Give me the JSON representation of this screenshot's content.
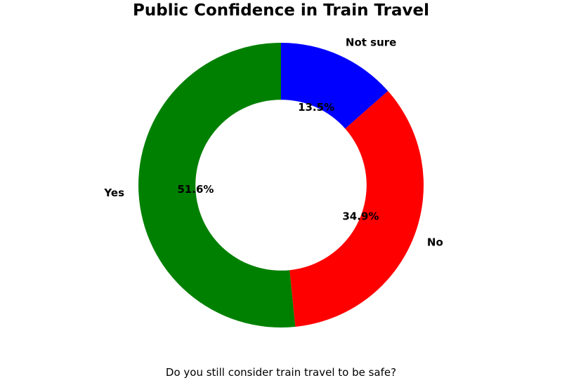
{
  "chart_data": {
    "type": "pie",
    "subtype": "donut",
    "title": "Public Confidence in Train Travel",
    "caption": "Do you still consider train travel to be safe?",
    "categories": [
      "Not sure",
      "No",
      "Yes"
    ],
    "values": [
      13.5,
      34.9,
      51.6
    ],
    "slices": [
      {
        "label": "Not sure",
        "value": 13.5,
        "pct_label": "13.5%",
        "color": "#0000ff"
      },
      {
        "label": "No",
        "value": 34.9,
        "pct_label": "34.9%",
        "color": "#ff0000"
      },
      {
        "label": "Yes",
        "value": 51.6,
        "pct_label": "51.6%",
        "color": "#008000"
      }
    ],
    "start_angle": 90,
    "direction": "clockwise",
    "inner_radius_ratio": 0.6,
    "pct_distance": 0.6,
    "label_distance": 1.1,
    "legend": "none",
    "background_color": "#ffffff",
    "text_color": "#000000"
  }
}
